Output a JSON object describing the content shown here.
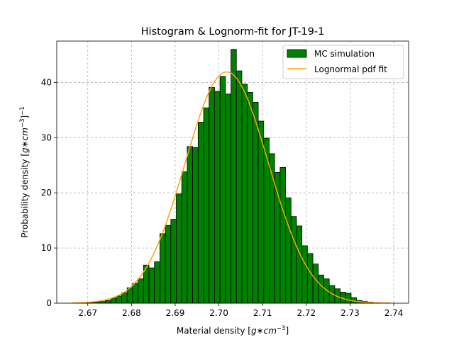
{
  "chart_data": {
    "type": "bar",
    "title": "Histogram & Lognorm-fit for JT-19-1",
    "xlabel": "Material density [",
    "xlabel_math": "g∗cm",
    "xlabel_exp": "−3",
    "xlabel_close": "]",
    "ylabel": "Probability density [",
    "ylabel_math": "g∗cm",
    "ylabel_exp": "−3",
    "ylabel_close": "]",
    "ylabel_outer_exp": "−1",
    "xlim": [
      2.6629,
      2.7434
    ],
    "ylim": [
      0,
      47.5
    ],
    "x_ticks": [
      "2.67",
      "2.68",
      "2.69",
      "2.70",
      "2.71",
      "2.72",
      "2.73",
      "2.74"
    ],
    "x_tick_values": [
      2.67,
      2.68,
      2.69,
      2.7,
      2.71,
      2.72,
      2.73,
      2.74
    ],
    "y_ticks": [
      "0",
      "10",
      "20",
      "30",
      "40"
    ],
    "y_tick_values": [
      0,
      10,
      20,
      30,
      40
    ],
    "grid": true,
    "legend_position": "top-right",
    "series": [
      {
        "name": "MC simulation",
        "kind": "histogram",
        "color": "#008000",
        "edge_color": "#000000",
        "bin_start": 2.6665,
        "bin_width": 0.00125,
        "values": [
          0.05,
          0.05,
          0.05,
          0.1,
          0.2,
          0.3,
          0.5,
          0.9,
          1.3,
          1.9,
          2.8,
          3.6,
          4.4,
          6.9,
          6.4,
          7.5,
          12.6,
          14.1,
          15.2,
          19.8,
          23.8,
          28.4,
          28.2,
          32.8,
          35.4,
          39.1,
          38.4,
          41.1,
          37.9,
          46.0,
          42.1,
          39.7,
          38.2,
          36.4,
          33.0,
          29.9,
          27.1,
          23.7,
          24.6,
          19.1,
          15.7,
          14.0,
          10.4,
          9.0,
          7.1,
          5.1,
          4.4,
          3.2,
          2.6,
          2.0,
          1.8,
          1.0,
          0.5,
          0.3,
          0.2,
          0.1,
          0.05,
          0.05
        ]
      },
      {
        "name": "Lognormal pdf fit",
        "kind": "line",
        "color": "#ffa500",
        "mean": 2.7018,
        "sigma": 0.00952
      }
    ]
  }
}
